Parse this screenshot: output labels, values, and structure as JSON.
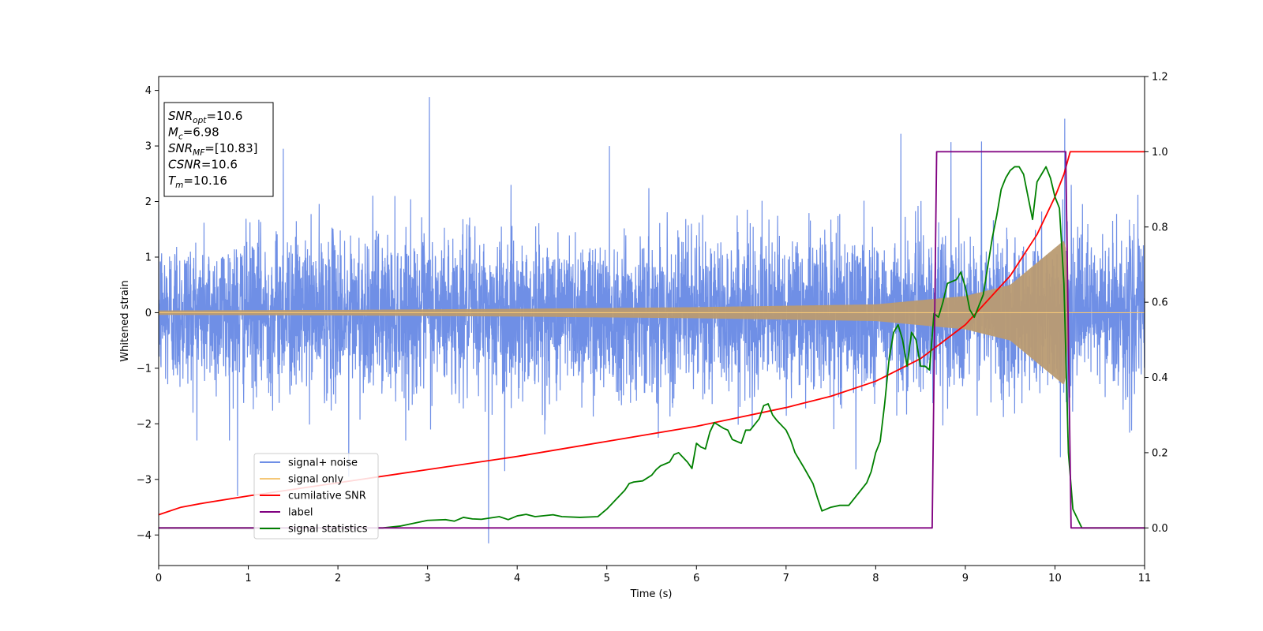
{
  "chart_data": {
    "type": "line",
    "title": "",
    "xlabel": "Time (s)",
    "ylabel": "Whitened strain",
    "xlim": [
      0,
      11
    ],
    "ylim_left": [
      -4.55,
      4.25
    ],
    "ylim_right": [
      -0.1,
      1.2
    ],
    "x_ticks": [
      0,
      1,
      2,
      3,
      4,
      5,
      6,
      7,
      8,
      9,
      10,
      11
    ],
    "y_ticks_left": [
      -4,
      -3,
      -2,
      -1,
      0,
      1,
      2,
      3,
      4
    ],
    "y_ticks_right": [
      0.0,
      0.2,
      0.4,
      0.6,
      0.8,
      1.0,
      1.2
    ],
    "grid": false,
    "legend_position": "lower-left",
    "colors": {
      "signal_noise": "#6f8fe6",
      "signal_only": "#f5c777",
      "signal_overlap": "#b99b72",
      "cumulative_snr": "#ff0000",
      "label": "#800080",
      "signal_statistics": "#008000"
    },
    "series": [
      {
        "name": "signal+ noise",
        "axis": "left",
        "style": "dense-noise",
        "sigma": 0.7,
        "peaks": [
          [
            3.02,
            3.88
          ],
          [
            10.11,
            3.49
          ],
          [
            9.18,
            3.08
          ],
          [
            8.28,
            3.22
          ],
          [
            8.84,
            3.07
          ],
          [
            1.39,
            2.95
          ],
          [
            5.03,
            3.0
          ],
          [
            3.68,
            -4.15
          ],
          [
            3.86,
            -2.85
          ],
          [
            0.88,
            -3.3
          ],
          [
            2.12,
            -2.95
          ],
          [
            7.78,
            -2.82
          ],
          [
            10.06,
            -2.6
          ]
        ]
      },
      {
        "name": "signal only",
        "axis": "left",
        "style": "chirp-envelope",
        "envelope": [
          [
            0,
            0.04
          ],
          [
            2,
            0.05
          ],
          [
            4,
            0.07
          ],
          [
            6,
            0.1
          ],
          [
            8,
            0.15
          ],
          [
            9,
            0.3
          ],
          [
            9.5,
            0.5
          ],
          [
            10.1,
            1.3
          ],
          [
            10.13,
            1.1
          ],
          [
            10.15,
            0.0
          ],
          [
            11,
            0.0
          ]
        ]
      },
      {
        "name": "cumilative SNR",
        "axis": "right",
        "x": [
          0,
          0.25,
          0.5,
          1,
          2,
          3,
          4,
          5,
          6,
          7,
          7.5,
          8,
          8.5,
          9,
          9.5,
          9.8,
          10.0,
          10.1,
          10.17,
          11
        ],
        "y": [
          0.035,
          0.055,
          0.066,
          0.085,
          0.12,
          0.155,
          0.19,
          0.23,
          0.27,
          0.32,
          0.35,
          0.39,
          0.45,
          0.54,
          0.67,
          0.78,
          0.88,
          0.94,
          1.0,
          1.0
        ]
      },
      {
        "name": "label",
        "axis": "right",
        "x": [
          0,
          8.63,
          8.68,
          10.12,
          10.18,
          11
        ],
        "y": [
          0.0,
          0.0,
          1.0,
          1.0,
          0.0,
          0.0
        ]
      },
      {
        "name": "signal statistics",
        "axis": "right",
        "x": [
          0,
          0.5,
          1,
          1.5,
          2,
          2.5,
          2.7,
          2.8,
          2.9,
          3.0,
          3.2,
          3.3,
          3.4,
          3.5,
          3.6,
          3.8,
          3.9,
          4.0,
          4.1,
          4.2,
          4.4,
          4.5,
          4.7,
          4.9,
          5.0,
          5.1,
          5.2,
          5.25,
          5.3,
          5.4,
          5.5,
          5.55,
          5.6,
          5.7,
          5.75,
          5.8,
          5.9,
          5.95,
          6.0,
          6.05,
          6.1,
          6.15,
          6.2,
          6.3,
          6.35,
          6.4,
          6.5,
          6.55,
          6.6,
          6.7,
          6.75,
          6.8,
          6.85,
          6.9,
          7.0,
          7.05,
          7.1,
          7.2,
          7.3,
          7.35,
          7.4,
          7.5,
          7.6,
          7.7,
          7.8,
          7.9,
          7.95,
          8.0,
          8.05,
          8.1,
          8.15,
          8.2,
          8.25,
          8.3,
          8.35,
          8.4,
          8.45,
          8.5,
          8.55,
          8.6,
          8.65,
          8.7,
          8.75,
          8.8,
          8.9,
          8.95,
          9.0,
          9.05,
          9.1,
          9.2,
          9.3,
          9.35,
          9.4,
          9.45,
          9.5,
          9.55,
          9.6,
          9.65,
          9.7,
          9.75,
          9.8,
          9.85,
          9.9,
          9.95,
          10.0,
          10.05,
          10.1,
          10.15,
          10.2,
          10.3,
          10.5,
          11
        ],
        "y": [
          0.0,
          0.0,
          0.0,
          0.0,
          0.0,
          0.0,
          0.005,
          0.01,
          0.015,
          0.02,
          0.022,
          0.018,
          0.028,
          0.024,
          0.023,
          0.03,
          0.022,
          0.032,
          0.036,
          0.03,
          0.035,
          0.03,
          0.028,
          0.03,
          0.05,
          0.075,
          0.1,
          0.118,
          0.122,
          0.125,
          0.14,
          0.155,
          0.165,
          0.175,
          0.195,
          0.2,
          0.175,
          0.158,
          0.225,
          0.215,
          0.21,
          0.255,
          0.28,
          0.265,
          0.26,
          0.235,
          0.225,
          0.26,
          0.26,
          0.29,
          0.325,
          0.33,
          0.3,
          0.285,
          0.26,
          0.235,
          0.2,
          0.16,
          0.118,
          0.08,
          0.045,
          0.055,
          0.06,
          0.06,
          0.09,
          0.12,
          0.15,
          0.2,
          0.23,
          0.33,
          0.45,
          0.52,
          0.54,
          0.5,
          0.43,
          0.52,
          0.5,
          0.43,
          0.43,
          0.42,
          0.57,
          0.56,
          0.6,
          0.65,
          0.66,
          0.68,
          0.64,
          0.58,
          0.56,
          0.62,
          0.77,
          0.83,
          0.9,
          0.93,
          0.95,
          0.96,
          0.96,
          0.94,
          0.88,
          0.82,
          0.92,
          0.94,
          0.96,
          0.93,
          0.88,
          0.85,
          0.65,
          0.2,
          0.05,
          0.0,
          0.0,
          0.0
        ]
      }
    ],
    "annotations": [
      {
        "base": "SNR",
        "sub": "opt",
        "value": "=10.6"
      },
      {
        "base": "M",
        "sub": "c",
        "value": "=6.98"
      },
      {
        "base": "SNR",
        "sub": "MF",
        "value": "=[10.83]"
      },
      {
        "base": "CSNR",
        "sub": "",
        "value": "=10.6"
      },
      {
        "base": "T",
        "sub": "m",
        "value": "=10.16"
      }
    ]
  }
}
